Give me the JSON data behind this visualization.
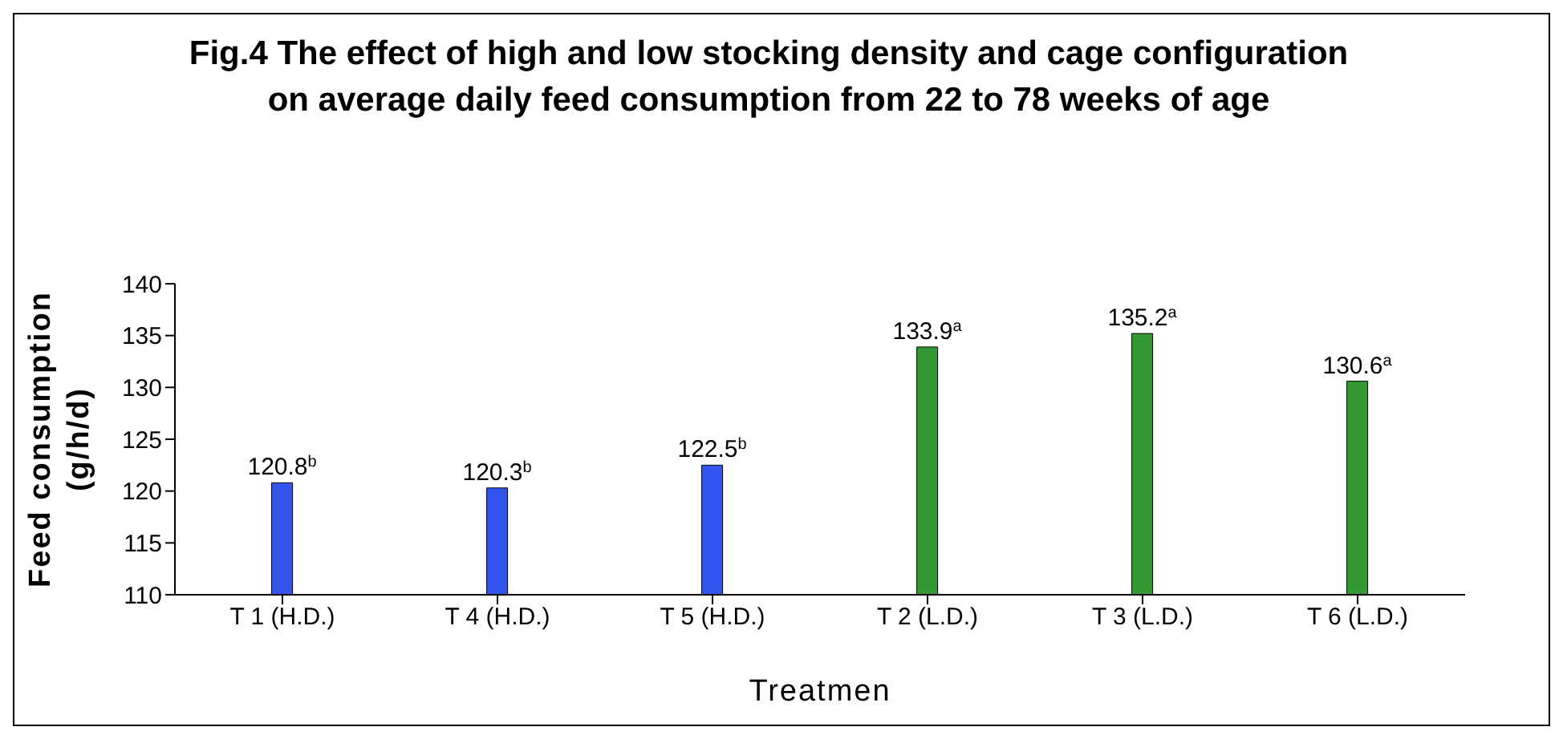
{
  "chart_data": {
    "type": "bar",
    "title": "Fig.4  The effect of high and low stocking density and cage configuration on average daily feed consumption from 22 to 78 weeks of age",
    "xlabel": "Treatmen",
    "ylabel": "Feed consumption (g/h/d)",
    "categories": [
      "T 1 (H.D.)",
      "T 4 (H.D.)",
      "T 5 (H.D.)",
      "T 2 (L.D.)",
      "T 3 (L.D.)",
      "T 6 (L.D.)"
    ],
    "values": [
      120.8,
      120.3,
      122.5,
      133.9,
      135.2,
      130.6
    ],
    "colors": [
      "#3355ee",
      "#3355ee",
      "#3355ee",
      "#339933",
      "#339933",
      "#339933"
    ],
    "value_labels": [
      "120.8$^{b}$",
      "120.3$^{b}$",
      "122.5$^{b}$",
      "133.9$^{a}$",
      "135.2$^{a}$",
      "130.6$^{a}$"
    ],
    "ylim": [
      110,
      140
    ],
    "yticks": [
      110,
      115,
      120,
      125,
      130,
      135,
      140
    ],
    "grid": false,
    "legend": false
  }
}
